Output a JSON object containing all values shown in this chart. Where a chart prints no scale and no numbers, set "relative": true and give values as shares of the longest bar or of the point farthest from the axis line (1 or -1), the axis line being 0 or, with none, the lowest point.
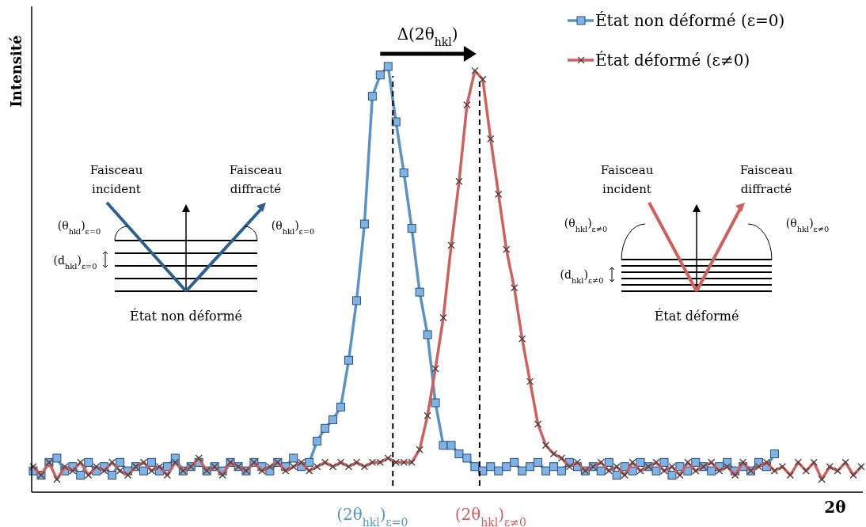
{
  "chart_data": {
    "type": "line",
    "relative": true,
    "xlabel": "2θ",
    "ylabel": "Intensité",
    "legend": "top right",
    "categories": [
      null,
      null,
      null,
      null,
      null,
      null,
      null,
      null,
      null,
      null,
      null,
      null,
      null,
      null,
      null,
      null,
      null,
      null,
      null,
      null,
      null,
      null,
      null,
      null,
      null,
      null,
      null,
      null,
      null,
      null,
      null,
      null,
      null,
      null,
      null,
      null,
      null,
      null,
      null,
      null,
      null,
      null,
      null,
      null,
      null,
      null,
      null,
      null,
      null,
      null,
      null,
      null,
      null,
      null,
      null,
      null,
      null,
      null,
      null,
      null,
      null,
      null,
      null,
      null,
      null,
      null,
      null,
      null,
      null,
      null,
      null,
      null,
      null,
      null,
      null,
      null,
      null,
      null,
      null,
      null,
      null,
      null,
      null,
      null,
      null,
      null,
      null,
      null,
      null,
      null,
      null,
      null,
      null,
      null,
      null,
      null,
      null,
      null,
      null,
      null,
      null,
      null,
      null,
      null,
      null,
      null
    ],
    "series": [
      {
        "name": "État non déformé (ε=0)",
        "color": "#5b93c9",
        "marker": "square",
        "values": [
          0.05,
          0.04,
          0.07,
          0.08,
          0.05,
          0.06,
          0.04,
          0.07,
          0.05,
          0.06,
          0.04,
          0.07,
          0.05,
          0.06,
          0.05,
          0.07,
          0.05,
          0.06,
          0.08,
          0.05,
          0.06,
          0.07,
          0.05,
          0.06,
          0.05,
          0.07,
          0.06,
          0.05,
          0.07,
          0.06,
          0.05,
          0.07,
          0.06,
          0.08,
          0.06,
          0.07,
          0.12,
          0.15,
          0.17,
          0.2,
          0.31,
          0.45,
          0.63,
          0.93,
          0.98,
          1,
          0.87,
          0.75,
          0.62,
          0.47,
          0.37,
          0.21,
          0.11,
          0.11,
          0.09,
          0.08,
          0.06,
          0.05,
          0.06,
          0.05,
          0.06,
          0.07,
          0.05,
          0.06,
          0.07,
          0.05,
          0.06,
          0.05,
          0.07,
          0.06,
          0.05,
          0.06,
          0.05,
          0.07,
          0.04,
          0.06,
          0.05,
          0.07,
          0.06,
          0.05,
          0.07,
          0.04,
          0.06,
          0.05,
          0.07,
          0.06,
          0.05,
          0.06,
          0.07,
          0.05,
          0.06,
          0.05,
          0.07,
          0.06,
          0.09,
          null,
          null,
          null,
          null,
          null,
          null,
          null,
          null,
          null,
          null,
          null
        ]
      },
      {
        "name": "État déformé (ε≠0)",
        "color": "#d0605e",
        "marker": "cross",
        "values": [
          0.06,
          0.04,
          0.07,
          0.03,
          0.06,
          0.05,
          0.07,
          0.04,
          0.06,
          0.05,
          0.07,
          0.05,
          0.04,
          0.06,
          0.07,
          0.05,
          0.06,
          0.04,
          0.07,
          0.05,
          0.06,
          0.08,
          0.05,
          0.06,
          0.04,
          0.07,
          0.06,
          0.05,
          0.07,
          0.05,
          0.06,
          0.07,
          0.05,
          0.06,
          0.07,
          0.05,
          0.06,
          0.07,
          0.06,
          0.07,
          0.06,
          0.07,
          0.06,
          0.07,
          0.07,
          0.08,
          0.07,
          0.07,
          0.07,
          0.1,
          0.18,
          0.29,
          0.41,
          0.58,
          0.73,
          0.91,
          0.99,
          0.97,
          0.83,
          0.7,
          0.57,
          0.48,
          0.36,
          0.26,
          0.16,
          0.11,
          0.09,
          0.08,
          0.06,
          0.07,
          0.05,
          0.06,
          0.07,
          0.05,
          0.06,
          0.04,
          0.07,
          0.05,
          0.06,
          0.07,
          0.05,
          0.06,
          0.04,
          0.07,
          0.05,
          0.06,
          0.07,
          0.05,
          0.06,
          0.04,
          0.07,
          0.05,
          0.06,
          0.07,
          0.05,
          0.06,
          0.04,
          0.07,
          0.05,
          0.07,
          0.03,
          0.06,
          0.05,
          0.07,
          0.04,
          0.06
        ]
      }
    ],
    "annotations": [
      "Δ(2θ$_{hkl}$)",
      "Faisceau incident",
      "Faisceau diffracté",
      "(θ$_{hkl}$)$_{ε=0}$",
      "(θ$_{hkl}$)$_{ε=0}$",
      "(d$_{hkl}$)$_{ε=0}$",
      "État non déformé",
      "Faisceau incident",
      "Faisceau diffracté",
      "(θ$_{hkl}$)$_{ε≠0}$",
      "(θ$_{hkl}$)$_{ε≠0}$",
      "(d$_{hkl}$)$_{ε≠0}$",
      "État déformé",
      "(2θ$_{hkl}$)$_{ε=0}$",
      "(2θ$_{hkl}$)$_{ε≠0}$"
    ]
  }
}
